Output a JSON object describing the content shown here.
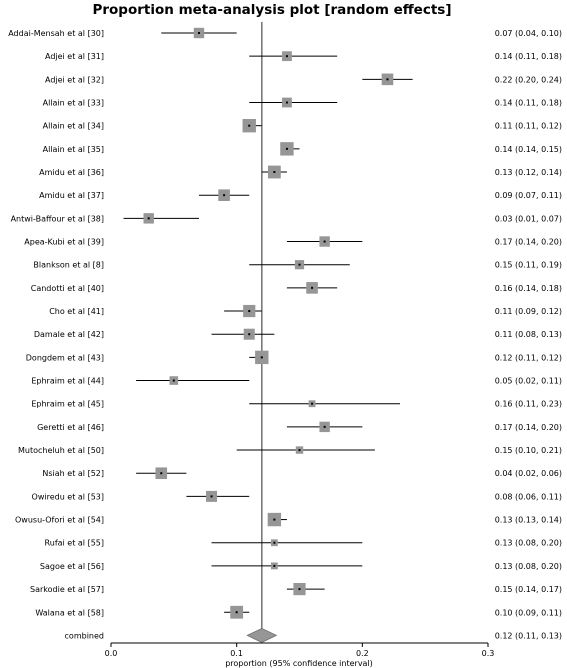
{
  "chart_data": {
    "type": "forest",
    "title": "Proportion meta-analysis plot [random effects]",
    "xlabel": "proportion (95% confidence interval)",
    "xlim": [
      0,
      0.3
    ],
    "xticks": [
      "0.0",
      "0.1",
      "0.2",
      "0.3"
    ],
    "xtick_values": [
      0,
      0.1,
      0.2,
      0.3
    ],
    "pooled_line": 0.12,
    "marker_color": "#969696",
    "line_color": "#000000",
    "studies": [
      {
        "name": "Addai-Mensah et al [30]",
        "est": 0.07,
        "lo": 0.04,
        "hi": 0.1,
        "ci_text": "0.07 (0.04, 0.10)"
      },
      {
        "name": "Adjei et al [31]",
        "est": 0.14,
        "lo": 0.11,
        "hi": 0.18,
        "ci_text": "0.14 (0.11, 0.18)"
      },
      {
        "name": "Adjei et al [32]",
        "est": 0.22,
        "lo": 0.2,
        "hi": 0.24,
        "ci_text": "0.22 (0.20, 0.24)"
      },
      {
        "name": "Allain et al [33]",
        "est": 0.14,
        "lo": 0.11,
        "hi": 0.18,
        "ci_text": "0.14 (0.11, 0.18)"
      },
      {
        "name": "Allain et al [34]",
        "est": 0.11,
        "lo": 0.11,
        "hi": 0.12,
        "ci_text": "0.11 (0.11, 0.12)"
      },
      {
        "name": "Allain et al [35]",
        "est": 0.14,
        "lo": 0.14,
        "hi": 0.15,
        "ci_text": "0.14 (0.14, 0.15)"
      },
      {
        "name": "Amidu et al [36]",
        "est": 0.13,
        "lo": 0.12,
        "hi": 0.14,
        "ci_text": "0.13 (0.12, 0.14)"
      },
      {
        "name": "Amidu et al [37]",
        "est": 0.09,
        "lo": 0.07,
        "hi": 0.11,
        "ci_text": "0.09 (0.07, 0.11)"
      },
      {
        "name": "Antwi-Baffour et al [38]",
        "est": 0.03,
        "lo": 0.01,
        "hi": 0.07,
        "ci_text": "0.03 (0.01, 0.07)"
      },
      {
        "name": "Apea-Kubi et al [39]",
        "est": 0.17,
        "lo": 0.14,
        "hi": 0.2,
        "ci_text": "0.17 (0.14, 0.20)"
      },
      {
        "name": "Blankson et al [8]",
        "est": 0.15,
        "lo": 0.11,
        "hi": 0.19,
        "ci_text": "0.15 (0.11, 0.19)"
      },
      {
        "name": "Candotti et al [40]",
        "est": 0.16,
        "lo": 0.14,
        "hi": 0.18,
        "ci_text": "0.16 (0.14, 0.18)"
      },
      {
        "name": "Cho et al [41]",
        "est": 0.11,
        "lo": 0.09,
        "hi": 0.12,
        "ci_text": "0.11 (0.09, 0.12)"
      },
      {
        "name": "Damale et al [42]",
        "est": 0.11,
        "lo": 0.08,
        "hi": 0.13,
        "ci_text": "0.11 (0.08, 0.13)"
      },
      {
        "name": "Dongdem et al [43]",
        "est": 0.12,
        "lo": 0.11,
        "hi": 0.12,
        "ci_text": "0.12 (0.11, 0.12)"
      },
      {
        "name": "Ephraim et al [44]",
        "est": 0.05,
        "lo": 0.02,
        "hi": 0.11,
        "ci_text": "0.05 (0.02, 0.11)"
      },
      {
        "name": "Ephraim et al [45]",
        "est": 0.16,
        "lo": 0.11,
        "hi": 0.23,
        "ci_text": "0.16 (0.11, 0.23)"
      },
      {
        "name": "Geretti et al [46]",
        "est": 0.17,
        "lo": 0.14,
        "hi": 0.2,
        "ci_text": "0.17 (0.14, 0.20)"
      },
      {
        "name": "Mutocheluh et al [50]",
        "est": 0.15,
        "lo": 0.1,
        "hi": 0.21,
        "ci_text": "0.15 (0.10, 0.21)"
      },
      {
        "name": "Nsiah et al [52]",
        "est": 0.04,
        "lo": 0.02,
        "hi": 0.06,
        "ci_text": "0.04 (0.02, 0.06)"
      },
      {
        "name": "Owiredu et al [53]",
        "est": 0.08,
        "lo": 0.06,
        "hi": 0.11,
        "ci_text": "0.08 (0.06, 0.11)"
      },
      {
        "name": "Owusu-Ofori et al [54]",
        "est": 0.13,
        "lo": 0.13,
        "hi": 0.14,
        "ci_text": "0.13 (0.13, 0.14)"
      },
      {
        "name": "Rufai et al [55]",
        "est": 0.13,
        "lo": 0.08,
        "hi": 0.2,
        "ci_text": "0.13 (0.08, 0.20)"
      },
      {
        "name": "Sagoe et al [56]",
        "est": 0.13,
        "lo": 0.08,
        "hi": 0.2,
        "ci_text": "0.13 (0.08, 0.20)"
      },
      {
        "name": "Sarkodie et al [57]",
        "est": 0.15,
        "lo": 0.14,
        "hi": 0.17,
        "ci_text": "0.15 (0.14, 0.17)"
      },
      {
        "name": "Walana et al [58]",
        "est": 0.1,
        "lo": 0.09,
        "hi": 0.11,
        "ci_text": "0.10 (0.09, 0.11)"
      }
    ],
    "combined": {
      "name": "combined",
      "est": 0.12,
      "lo": 0.11,
      "hi": 0.13,
      "ci_text": "0.12 (0.11, 0.13)"
    }
  }
}
